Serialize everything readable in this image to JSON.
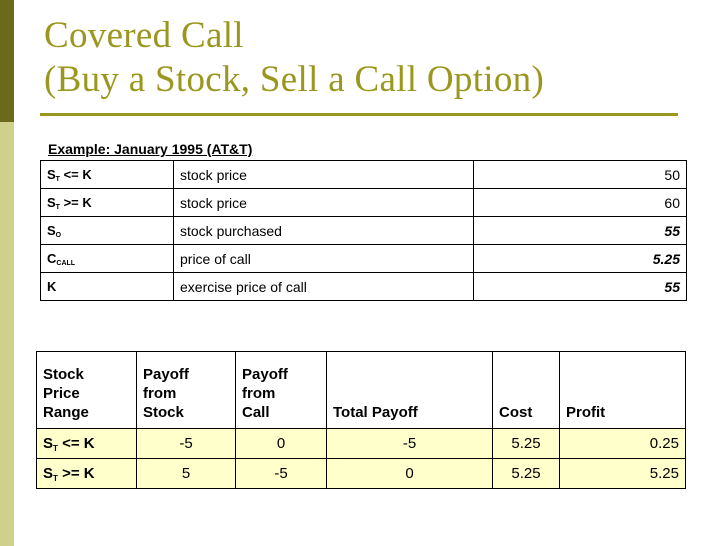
{
  "slide": {
    "title_line1": "Covered Call",
    "title_line2": "(Buy a Stock, Sell a Call Option)"
  },
  "example": {
    "caption": "Example: January 1995 (AT&T)",
    "rows": [
      {
        "sym": "S",
        "sub": "T",
        "suffix": " <= K",
        "label": "stock price",
        "value": "50"
      },
      {
        "sym": "S",
        "sub": "T",
        "suffix": " >= K",
        "label": "stock price",
        "value": "60"
      },
      {
        "sym": "S",
        "sub": "O",
        "suffix": "",
        "label": "stock purchased",
        "value": "55"
      },
      {
        "sym": "C",
        "sub": "CALL",
        "suffix": "",
        "label": "price of call",
        "value": "5.25"
      },
      {
        "sym": "K",
        "sub": "",
        "suffix": "",
        "label": "exercise price of call",
        "value": "55"
      }
    ]
  },
  "payoff": {
    "headers": {
      "range": [
        "Stock",
        "Price",
        "Range"
      ],
      "stock": [
        "Payoff",
        "from",
        "Stock"
      ],
      "call": [
        "Payoff",
        "from",
        "Call"
      ],
      "total": "Total Payoff",
      "cost": "Cost",
      "profit": "Profit"
    },
    "rows": [
      {
        "sym": "S",
        "sub": "T",
        "suffix": " <= K",
        "stock": "-5",
        "call": "0",
        "total": "-5",
        "cost": "5.25",
        "profit": "0.25"
      },
      {
        "sym": "S",
        "sub": "T",
        "suffix": " >= K",
        "stock": "5",
        "call": "-5",
        "total": "0",
        "cost": "5.25",
        "profit": "5.25"
      }
    ]
  },
  "colors": {
    "title": "#9b961e",
    "sidebar_dark": "#6b6a1a",
    "sidebar_light": "#cfd08a",
    "row_highlight": "#ffffcc"
  }
}
